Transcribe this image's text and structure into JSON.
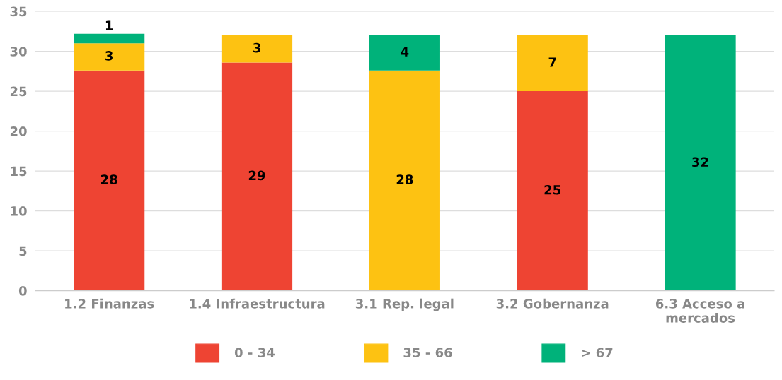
{
  "chart_data": {
    "type": "bar",
    "stacked": true,
    "categories": [
      "1.2 Finanzas",
      "1.4 Infraestructura",
      "3.1 Rep. legal",
      "3.2 Gobernanza",
      "6.3 Acceso a\nmercados"
    ],
    "series": [
      {
        "name": "0 - 34",
        "color": "#ee4433",
        "values": [
          27.6,
          28.6,
          null,
          25.0,
          null
        ],
        "value_labels": [
          "28",
          "29",
          null,
          "25",
          null
        ]
      },
      {
        "name": "35 - 66",
        "color": "#fdc212",
        "values": [
          3.4,
          3.4,
          27.6,
          7.0,
          null
        ],
        "value_labels": [
          "3",
          "3",
          "28",
          "7",
          null
        ]
      },
      {
        "name": "> 67",
        "color": "#00b27a",
        "values": [
          1.2,
          null,
          4.4,
          null,
          32.0
        ],
        "value_labels": [
          "1",
          null,
          "4",
          null,
          "32"
        ]
      }
    ],
    "ylim": [
      0,
      35
    ],
    "yticks": [
      0,
      5,
      10,
      15,
      20,
      25,
      30,
      35
    ],
    "grid": "y",
    "legend": "bottom"
  }
}
